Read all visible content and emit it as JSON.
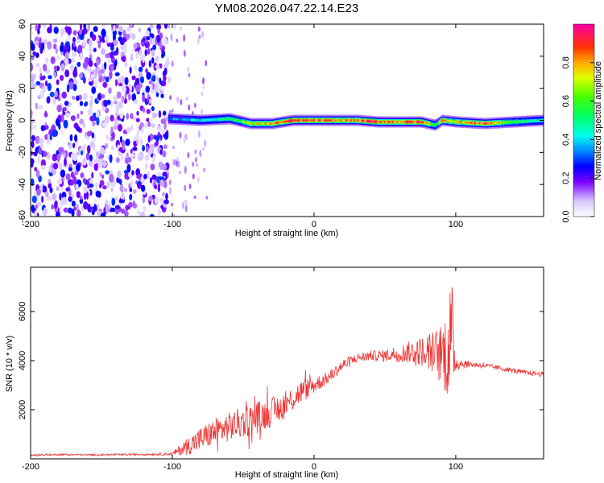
{
  "title": "YM08.2026.047.22.14.E23",
  "chart_data": [
    {
      "type": "heatmap",
      "xlabel": "Height of straight line (km)",
      "ylabel": "Frequency (Hz)",
      "xlim": [
        -200,
        162
      ],
      "ylim": [
        -60,
        60
      ],
      "xticks": [
        "-200",
        "-100",
        "0",
        "100"
      ],
      "yticks": [
        "60",
        "40",
        "20",
        "0",
        "-20",
        "-40",
        "-60"
      ],
      "colorbar": {
        "label": "Normalized spectral amplitude",
        "range": [
          0,
          1
        ],
        "ticks": [
          "0.0",
          "0.2",
          "0.4",
          "0.6",
          "0.8"
        ]
      },
      "description_points": {
        "noise_region_x": [
          -200,
          -103
        ],
        "signal_start_x": -103,
        "signal_center_freq": 0,
        "ridge_x": [
          -103,
          -80,
          -60,
          -45,
          -30,
          -15,
          0,
          15,
          30,
          45,
          60,
          75,
          85,
          90,
          100,
          120,
          140,
          162
        ],
        "ridge_freq": [
          1,
          0,
          1,
          -2,
          -2,
          0,
          0,
          0,
          0,
          -1,
          -1,
          -1,
          -3,
          0,
          -1,
          -2,
          -1,
          0
        ],
        "ridge_amp": [
          0.35,
          0.45,
          0.55,
          0.75,
          0.85,
          0.95,
          0.9,
          0.85,
          0.9,
          0.95,
          0.9,
          0.95,
          0.6,
          0.85,
          0.8,
          0.95,
          0.6,
          0.45
        ]
      }
    },
    {
      "type": "line",
      "xlabel": "Height of straight line (km)",
      "ylabel": "SNR (10 * v/v)",
      "xlim": [
        -200,
        162
      ],
      "ylim": [
        0,
        7800
      ],
      "xticks": [
        "-200",
        "-100",
        "0",
        "100"
      ],
      "yticks": [
        "2000",
        "4000",
        "6000"
      ],
      "series": [
        {
          "color": "#ee3333",
          "x": [
            -200,
            -180,
            -160,
            -140,
            -120,
            -100,
            -90,
            -80,
            -70,
            -60,
            -50,
            -40,
            -30,
            -20,
            -10,
            0,
            10,
            20,
            30,
            40,
            50,
            60,
            70,
            80,
            90,
            95,
            97,
            100,
            110,
            120,
            130,
            140,
            150,
            162
          ],
          "y": [
            150,
            180,
            160,
            170,
            180,
            200,
            500,
            800,
            1100,
            1300,
            1500,
            1700,
            1900,
            2200,
            2700,
            3000,
            3300,
            3800,
            4100,
            4200,
            4200,
            4300,
            4350,
            4400,
            4200,
            4500,
            5000,
            3900,
            3850,
            3800,
            3700,
            3600,
            3500,
            3450
          ],
          "noise": [
            40,
            40,
            40,
            40,
            40,
            60,
            350,
            500,
            550,
            600,
            650,
            650,
            600,
            550,
            500,
            350,
            250,
            250,
            200,
            200,
            250,
            350,
            500,
            700,
            1200,
            2200,
            2600,
            300,
            120,
            110,
            100,
            100,
            100,
            100
          ]
        }
      ]
    }
  ]
}
